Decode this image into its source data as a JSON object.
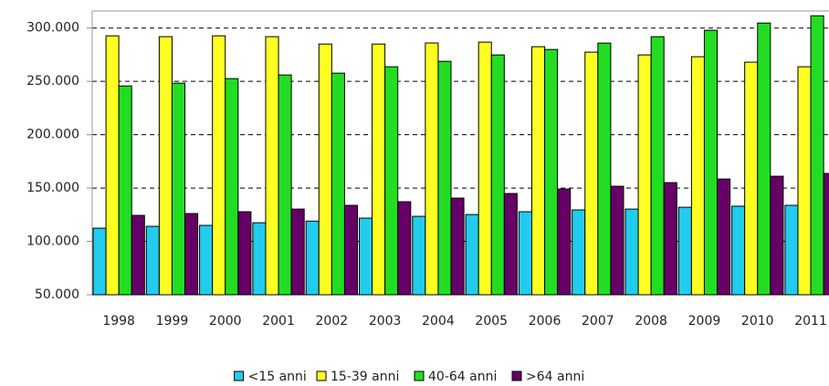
{
  "chart_data": {
    "type": "bar",
    "categories": [
      "1998",
      "1999",
      "2000",
      "2001",
      "2002",
      "2003",
      "2004",
      "2005",
      "2006",
      "2007",
      "2008",
      "2009",
      "2010",
      "2011"
    ],
    "series": [
      {
        "name": "<15 anni",
        "color": "#22ccee",
        "values": [
          112400,
          114100,
          115000,
          117500,
          119000,
          121800,
          123500,
          125200,
          127800,
          129500,
          130300,
          132000,
          133000,
          133800
        ]
      },
      {
        "name": "15-39 anni",
        "color": "#ffff22",
        "values": [
          292700,
          291900,
          292700,
          291900,
          285000,
          285000,
          286000,
          286800,
          282500,
          277400,
          274800,
          273100,
          268000,
          263700
        ]
      },
      {
        "name": "40-64 anni",
        "color": "#22dd22",
        "values": [
          245700,
          248300,
          252600,
          256000,
          257700,
          263700,
          268800,
          274800,
          279900,
          285900,
          291900,
          297900,
          304700,
          311500
        ]
      },
      {
        "name": ">64 anni",
        "color": "#660066",
        "values": [
          124400,
          126100,
          127800,
          130300,
          133800,
          137200,
          140600,
          144900,
          149100,
          151700,
          155100,
          158500,
          161100,
          163700
        ]
      }
    ],
    "ylim": [
      50000,
      316000
    ],
    "yticks": [
      {
        "value": 50000,
        "label": "50.000"
      },
      {
        "value": 100000,
        "label": "100.000"
      },
      {
        "value": 150000,
        "label": "150.000"
      },
      {
        "value": 200000,
        "label": "200.000"
      },
      {
        "value": 250000,
        "label": "250.000"
      },
      {
        "value": 300000,
        "label": "300.000"
      }
    ],
    "grid": true
  }
}
